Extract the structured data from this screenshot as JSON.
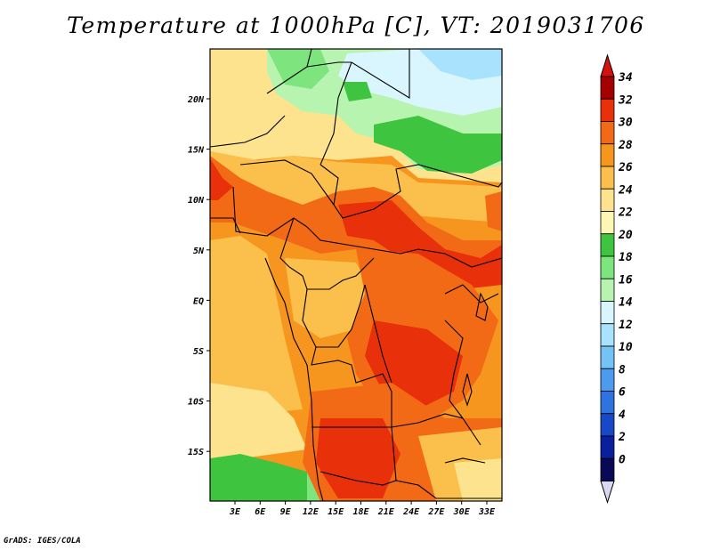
{
  "title": "Temperature at 1000hPa [C], VT: 2019031706",
  "credit": "GrADS: IGES/COLA",
  "map": {
    "lon_ticks": [
      "3E",
      "6E",
      "9E",
      "12E",
      "15E",
      "18E",
      "21E",
      "24E",
      "27E",
      "30E",
      "33E"
    ],
    "lat_ticks": [
      "20N",
      "15N",
      "10N",
      "5N",
      "EQ",
      "5S",
      "10S",
      "15S"
    ]
  },
  "colorbar": {
    "labels": [
      "34",
      "32",
      "30",
      "28",
      "26",
      "24",
      "22",
      "20",
      "18",
      "16",
      "14",
      "12",
      "10",
      "8",
      "6",
      "4",
      "2",
      "0"
    ],
    "colors": [
      "#a50000",
      "#e8300a",
      "#f26a16",
      "#f7961f",
      "#fbbf4c",
      "#fde38d",
      "#fdf6b4",
      "#3fc43f",
      "#7ee57e",
      "#b6f4b0",
      "#d9f6ff",
      "#a8e2fc",
      "#74c3f7",
      "#4d9bee",
      "#2f73e0",
      "#1748c8",
      "#0a1f9e",
      "#080a55"
    ],
    "over_color": "#d41010",
    "under_color": "#d8d8f0"
  },
  "field": {
    "description_colors": {
      "hot": "#e8300a",
      "warm": "#f26a16",
      "orange": "#f7961f",
      "light_orange": "#fbbf4c",
      "yellow": "#fde38d",
      "pale": "#fdf6b4",
      "green": "#3fc43f",
      "light_green": "#7ee57e",
      "pale_green": "#b6f4b0",
      "cyan": "#d9f6ff",
      "sky": "#a8e2fc"
    }
  }
}
